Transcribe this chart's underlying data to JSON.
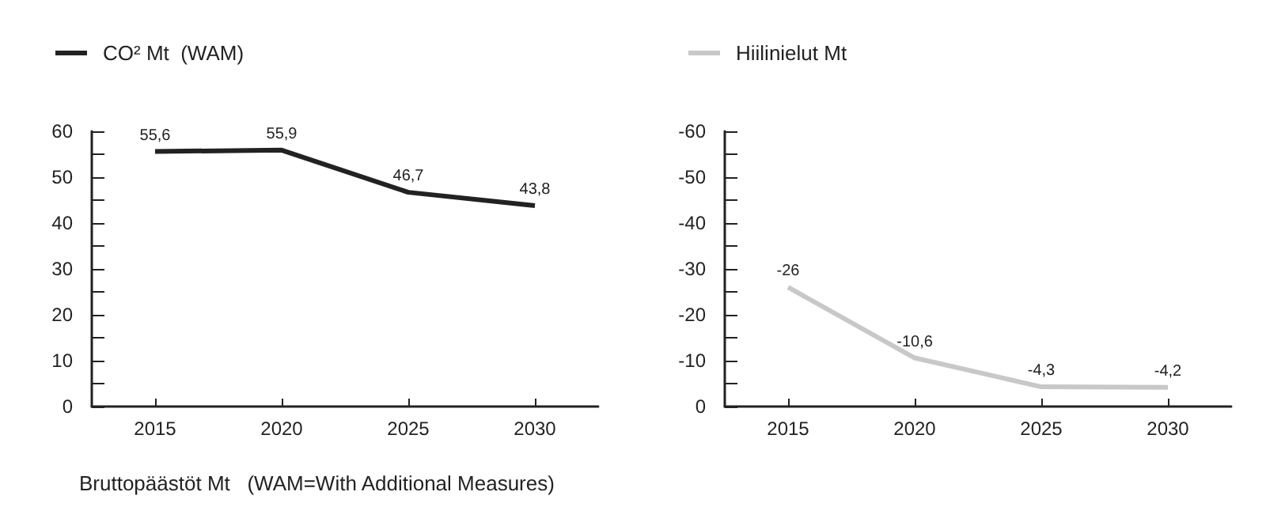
{
  "chart_data": [
    {
      "type": "line",
      "categories": [
        "2015",
        "2020",
        "2025",
        "2030"
      ],
      "xlabel": "Bruttopäästöt Mt   (WAM=With Additional Measures)",
      "series": [
        {
          "name": "CO² Mt  (WAM)",
          "color": "#222222",
          "values": [
            55.6,
            55.9,
            46.7,
            43.8
          ],
          "value_labels": [
            "55,6",
            "55,9",
            "46,7",
            "43,8"
          ]
        }
      ],
      "ylim": [
        0,
        60
      ],
      "yticks": [
        0,
        {
          "value": 5,
          "label": null
        },
        10,
        {
          "value": 15,
          "label": null
        },
        20,
        {
          "value": 25,
          "label": null
        },
        30,
        {
          "value": 35,
          "label": null
        },
        40,
        {
          "value": 45,
          "label": null
        },
        50,
        {
          "value": 55,
          "label": null
        },
        60
      ],
      "grid": false,
      "legend": "top left",
      "marker": "none"
    },
    {
      "type": "line",
      "categories": [
        "2015",
        "2020",
        "2025",
        "2030"
      ],
      "series": [
        {
          "name": "Hiilinielut Mt",
          "color": "#c8c8c8",
          "values": [
            -26,
            -10.6,
            -4.3,
            -4.2
          ],
          "value_labels": [
            "-26",
            "-10,6",
            "-4,3",
            "-4,2"
          ]
        }
      ],
      "ylim": [
        0,
        -60
      ],
      "yticks": [
        0,
        {
          "value": -5,
          "label": null
        },
        -10,
        {
          "value": -15,
          "label": null
        },
        -20,
        {
          "value": -25,
          "label": null
        },
        -30,
        {
          "value": -35,
          "label": null
        },
        -40,
        {
          "value": -45,
          "label": null
        },
        -50,
        {
          "value": -55,
          "label": null
        },
        -60
      ],
      "grid": false,
      "legend": "top left",
      "marker": "none"
    }
  ]
}
